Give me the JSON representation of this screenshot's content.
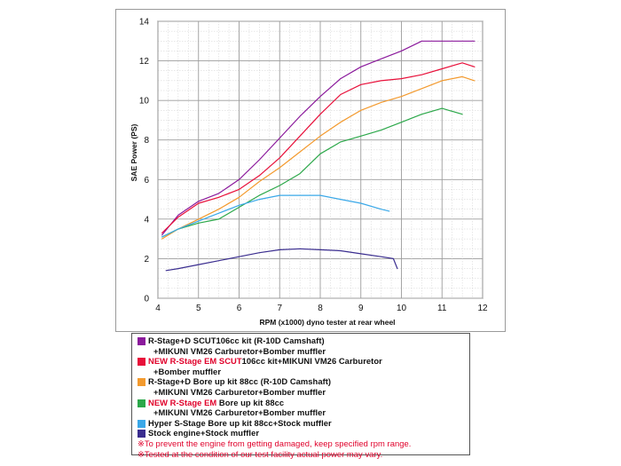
{
  "chart_data": {
    "type": "line",
    "xlabel": "RPM (x1000) dyno tester at rear wheel",
    "ylabel": "SAE Power (PS)",
    "xlim": [
      4,
      12
    ],
    "ylim": [
      0,
      14
    ],
    "x_ticks": [
      "4",
      "5",
      "6",
      "7",
      "8",
      "9",
      "10",
      "11",
      "12"
    ],
    "y_ticks": [
      "0",
      "2",
      "4",
      "6",
      "8",
      "10",
      "12",
      "14"
    ],
    "grid": true,
    "legend_position": "below chart",
    "series": [
      {
        "color": "#8b1a9c",
        "x": [
          4.1,
          4.5,
          5.0,
          5.5,
          6.0,
          6.5,
          7.0,
          7.5,
          8.0,
          8.5,
          9.0,
          9.5,
          10.0,
          10.5,
          11.0,
          11.5,
          11.8
        ],
        "y": [
          3.2,
          4.2,
          4.9,
          5.3,
          6.0,
          7.0,
          8.1,
          9.2,
          10.2,
          11.1,
          11.7,
          12.1,
          12.5,
          13.0,
          13.0,
          13.0,
          13.0
        ]
      },
      {
        "color": "#e8103a",
        "x": [
          4.1,
          4.5,
          5.0,
          5.5,
          6.0,
          6.5,
          7.0,
          7.5,
          8.0,
          8.5,
          9.0,
          9.5,
          10.0,
          10.5,
          11.0,
          11.5,
          11.8
        ],
        "y": [
          3.3,
          4.1,
          4.8,
          5.1,
          5.5,
          6.2,
          7.1,
          8.2,
          9.3,
          10.3,
          10.8,
          11.0,
          11.1,
          11.3,
          11.6,
          11.9,
          11.7
        ]
      },
      {
        "color": "#f39a2e",
        "x": [
          4.1,
          4.5,
          5.0,
          5.5,
          6.0,
          6.5,
          7.0,
          7.5,
          8.0,
          8.5,
          9.0,
          9.5,
          10.0,
          10.5,
          11.0,
          11.5,
          11.8
        ],
        "y": [
          3.0,
          3.5,
          4.0,
          4.5,
          5.1,
          5.9,
          6.6,
          7.4,
          8.2,
          8.9,
          9.5,
          9.9,
          10.2,
          10.6,
          11.0,
          11.2,
          11.0
        ]
      },
      {
        "color": "#2ca84a",
        "x": [
          4.1,
          4.5,
          5.0,
          5.5,
          6.0,
          6.5,
          7.0,
          7.5,
          8.0,
          8.5,
          9.0,
          9.5,
          10.0,
          10.5,
          11.0,
          11.5
        ],
        "y": [
          3.1,
          3.5,
          3.8,
          4.0,
          4.6,
          5.2,
          5.7,
          6.3,
          7.3,
          7.9,
          8.2,
          8.5,
          8.9,
          9.3,
          9.6,
          9.3
        ]
      },
      {
        "color": "#3aa8e8",
        "x": [
          4.1,
          4.5,
          5.0,
          5.5,
          6.0,
          6.5,
          7.0,
          7.5,
          8.0,
          8.5,
          9.0,
          9.5,
          9.7
        ],
        "y": [
          3.1,
          3.5,
          3.9,
          4.3,
          4.7,
          5.0,
          5.2,
          5.2,
          5.2,
          5.0,
          4.8,
          4.5,
          4.4
        ]
      },
      {
        "color": "#3a2d8f",
        "x": [
          4.2,
          4.5,
          5.0,
          5.5,
          6.0,
          6.5,
          7.0,
          7.5,
          8.0,
          8.5,
          9.0,
          9.5,
          9.8,
          9.9
        ],
        "y": [
          1.4,
          1.5,
          1.7,
          1.9,
          2.1,
          2.3,
          2.45,
          2.5,
          2.45,
          2.4,
          2.25,
          2.1,
          2.0,
          1.5
        ]
      }
    ]
  },
  "legend": {
    "entries": [
      {
        "color": "#8b1a9c",
        "line1_pre": "",
        "line1_hl": "",
        "line1_post": "R-Stage+D SCUT106cc kit (R-10D Camshaft)",
        "line2": "+MIKUNI VM26 Carburetor+Bomber muffler"
      },
      {
        "color": "#e8103a",
        "line1_pre": "",
        "line1_hl": "NEW R-Stage EM SCUT",
        "line1_post": "106cc kit+MIKUNI VM26 Carburetor",
        "line2": "+Bomber muffler"
      },
      {
        "color": "#f39a2e",
        "line1_pre": "",
        "line1_hl": "",
        "line1_post": "R-Stage+D Bore up kit 88cc (R-10D Camshaft)",
        "line2": "+MIKUNI VM26 Carburetor+Bomber muffler"
      },
      {
        "color": "#2ca84a",
        "line1_pre": "",
        "line1_hl": "NEW R-Stage EM",
        "line1_post": " Bore up kit 88cc",
        "line2": "+MIKUNI VM26 Carburetor+Bomber muffler"
      },
      {
        "color": "#3aa8e8",
        "line1_pre": "",
        "line1_hl": "",
        "line1_post": "Hyper S-Stage Bore up kit 88cc+Stock muffler",
        "line2": ""
      },
      {
        "color": "#3a2d8f",
        "line1_pre": "",
        "line1_hl": "",
        "line1_post": "Stock engine+Stock muffler",
        "line2": ""
      }
    ],
    "notes": [
      "※To prevent the engine from getting damaged, keep specified rpm range.",
      "※Tested at the condition of our test facility actual power may vary."
    ]
  }
}
